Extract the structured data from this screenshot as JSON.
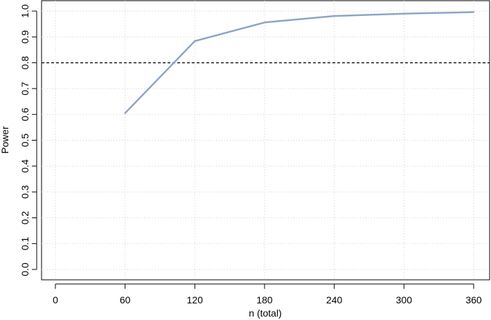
{
  "chart_data": {
    "type": "line",
    "title": "",
    "xlabel": "n (total)",
    "ylabel": "Power",
    "xlim": [
      0,
      360
    ],
    "ylim": [
      0.0,
      1.0
    ],
    "x_ticks": [
      "0",
      "60",
      "120",
      "180",
      "240",
      "300",
      "360"
    ],
    "y_ticks": [
      "0.0",
      "0.1",
      "0.2",
      "0.3",
      "0.4",
      "0.5",
      "0.6",
      "0.7",
      "0.8",
      "0.9",
      "1.0"
    ],
    "grid": true,
    "grid_style": "dotted",
    "reference_line": {
      "y": 0.8,
      "style": "dashed"
    },
    "series": [
      {
        "x": [
          60,
          120,
          180,
          240,
          300,
          360
        ],
        "y": [
          0.605,
          0.884,
          0.956,
          0.981,
          0.99,
          0.996
        ],
        "color": "#8EA3C8"
      }
    ]
  }
}
